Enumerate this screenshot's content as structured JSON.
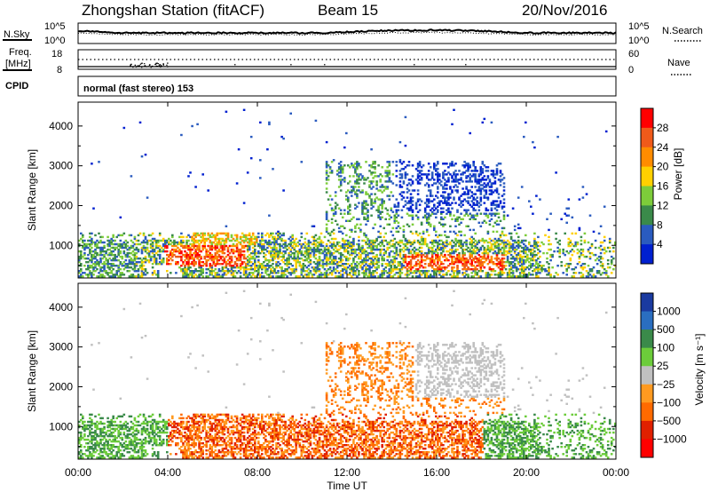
{
  "header": {
    "station": "Zhongshan Station (fitACF)",
    "beam": "Beam 15",
    "date": "20/Nov/2016"
  },
  "noise_panel": {
    "left_label": "N.Sky",
    "left_ticks": [
      "10^5",
      "10^0"
    ],
    "right_label": "N.Search",
    "right_ticks": [
      "10^5",
      "10^0"
    ]
  },
  "freq_panel": {
    "left_label_line1": "Freq.",
    "left_label_line2": "[MHz]",
    "left_ticks": [
      "18",
      "8"
    ],
    "right_label": "Nave",
    "right_ticks": [
      "60",
      "0"
    ]
  },
  "cpid": {
    "label": "CPID",
    "text": "normal (fast stereo) 153"
  },
  "chart_data": [
    {
      "type": "heatmap",
      "name": "power",
      "ylabel": "Slant Range [km]",
      "yticks": [
        "4000",
        "3000",
        "2000",
        "1000"
      ],
      "ylim": [
        180,
        4600
      ],
      "xlim": [
        0,
        24
      ],
      "colorbar": {
        "label": "Power [dB]",
        "ticks": [
          "28",
          "24",
          "20",
          "16",
          "12",
          "8",
          "4"
        ],
        "colors": [
          "#ff0000",
          "#f05a1a",
          "#ff8c00",
          "#ffd000",
          "#7dcc3a",
          "#3a8a4a",
          "#2a5bbf",
          "#0020d0"
        ]
      }
    },
    {
      "type": "heatmap",
      "name": "velocity",
      "ylabel": "Slant Range [km]",
      "yticks": [
        "4000",
        "3000",
        "2000",
        "1000"
      ],
      "ylim": [
        180,
        4600
      ],
      "xlim": [
        0,
        24
      ],
      "xlabel": "Time UT",
      "xticks": [
        "00:00",
        "04:00",
        "08:00",
        "12:00",
        "16:00",
        "20:00",
        "00:00"
      ],
      "colorbar": {
        "label": "Velocity [m s⁻¹]",
        "ticks": [
          "1000",
          "500",
          "100",
          "25",
          "−25",
          "−100",
          "−500",
          "−1000"
        ],
        "colors": [
          "#1a3aa0",
          "#2a6ec0",
          "#3a8a4a",
          "#6ccc3a",
          "#c0c0c0",
          "#ff9a20",
          "#ff6a00",
          "#e02000",
          "#ff0000"
        ]
      }
    }
  ]
}
